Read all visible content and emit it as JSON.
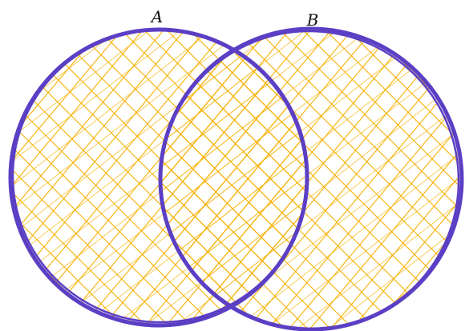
{
  "sets": [
    {
      "id": "A",
      "label": "A"
    },
    {
      "id": "B",
      "label": "B"
    }
  ],
  "colors": {
    "fill_hatch": "#f5b000",
    "outline": "#5b3fc4"
  }
}
